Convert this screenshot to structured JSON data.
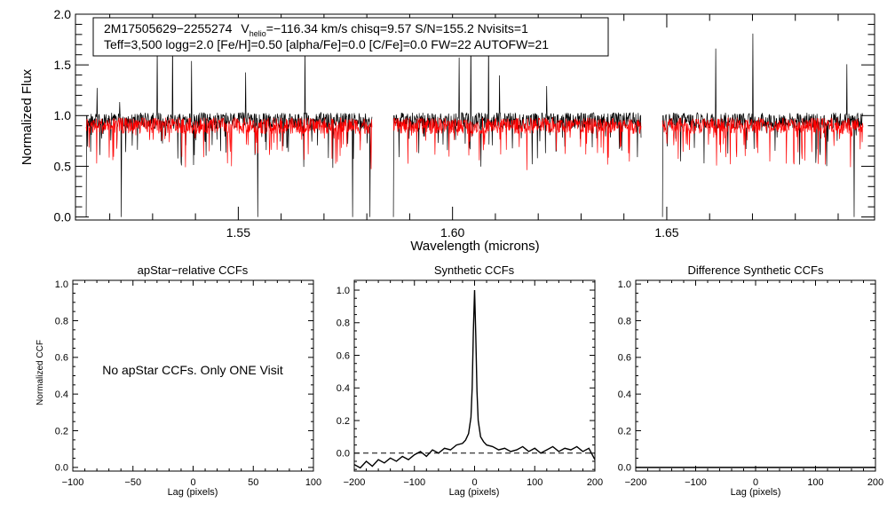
{
  "chart_data": [
    {
      "type": "line",
      "panel": "spectrum",
      "title": "",
      "xlabel": "Wavelength (microns)",
      "ylabel": "Normalized Flux",
      "xlim": [
        1.512,
        1.6985
      ],
      "ylim": [
        -0.03,
        2.0
      ],
      "xticks": [
        1.55,
        1.6,
        1.65
      ],
      "xtick_labels": [
        "1.55",
        "1.60",
        "1.65"
      ],
      "yticks": [
        0.0,
        0.5,
        1.0,
        1.5,
        2.0
      ],
      "ytick_labels": [
        "0.0",
        "0.5",
        "1.0",
        "1.5",
        "2.0"
      ],
      "detector_chips": [
        [
          1.5145,
          1.5812
        ],
        [
          1.5862,
          1.644
        ],
        [
          1.649,
          1.6958
        ]
      ],
      "series": [
        {
          "name": "observed",
          "color": "#000000",
          "base": 0.95
        },
        {
          "name": "model",
          "color": "#ff0000",
          "base": 0.9
        }
      ],
      "annotation": {
        "line1_star": "2M17505629−2255274",
        "line1_v": "V",
        "line1_sub": "helio",
        "line1_rest": "=−116.34 km/s  chisq=9.57  S/N=155.2  Nvisits=1",
        "line2": "Teff=3,500 logg=2.0 [Fe/H]=0.50 [alpha/Fe]=0.0 [C/Fe]=0.0 FW=22 AUTOFW=21"
      }
    },
    {
      "type": "line",
      "panel": "apstar",
      "title": "apStar−relative CCFs",
      "xlabel": "Lag (pixels)",
      "ylabel": "Normalized CCF",
      "xlim": [
        -100,
        100
      ],
      "ylim": [
        -0.02,
        1.02
      ],
      "xticks": [
        -100,
        -50,
        0,
        50,
        100
      ],
      "xtick_labels": [
        "−100",
        "−50",
        "0",
        "50",
        "100"
      ],
      "yticks": [
        0.0,
        0.2,
        0.4,
        0.6,
        0.8,
        1.0
      ],
      "ytick_labels": [
        "0.0",
        "0.2",
        "0.4",
        "0.6",
        "0.8",
        "1.0"
      ],
      "message": "No apStar CCFs.  Only ONE Visit",
      "series": []
    },
    {
      "type": "line",
      "panel": "synthetic",
      "title": "Synthetic CCFs",
      "xlabel": "Lag (pixels)",
      "ylabel": "",
      "xlim": [
        -200,
        200
      ],
      "ylim": [
        -0.11,
        1.06
      ],
      "xticks": [
        -200,
        -100,
        0,
        100,
        200
      ],
      "xtick_labels": [
        "−200",
        "−100",
        "0",
        "100",
        "200"
      ],
      "yticks": [
        0.0,
        0.2,
        0.4,
        0.6,
        0.8,
        1.0
      ],
      "ytick_labels": [
        "0.0",
        "0.2",
        "0.4",
        "0.6",
        "0.8",
        "1.0"
      ],
      "reference_line": {
        "y": 0.0,
        "style": "dashed"
      },
      "series": [
        {
          "name": "ccf",
          "color": "#000000",
          "x": [
            -200,
            -190,
            -180,
            -170,
            -160,
            -150,
            -140,
            -130,
            -120,
            -110,
            -100,
            -90,
            -80,
            -70,
            -60,
            -50,
            -40,
            -30,
            -20,
            -15,
            -10,
            -6,
            -4,
            -2,
            0,
            2,
            4,
            6,
            10,
            15,
            20,
            30,
            40,
            50,
            60,
            70,
            80,
            90,
            100,
            110,
            120,
            130,
            140,
            150,
            160,
            170,
            180,
            190,
            200
          ],
          "y": [
            -0.07,
            -0.09,
            -0.05,
            -0.08,
            -0.04,
            -0.06,
            -0.03,
            -0.05,
            -0.02,
            -0.04,
            -0.01,
            0.01,
            -0.02,
            0.02,
            0.0,
            0.03,
            0.02,
            0.05,
            0.06,
            0.08,
            0.12,
            0.22,
            0.4,
            0.75,
            1.0,
            0.72,
            0.38,
            0.2,
            0.1,
            0.07,
            0.05,
            0.04,
            0.02,
            0.03,
            0.01,
            0.02,
            0.04,
            0.01,
            0.03,
            0.0,
            0.02,
            0.04,
            0.01,
            0.03,
            0.02,
            0.04,
            0.01,
            0.03,
            -0.04
          ]
        }
      ]
    },
    {
      "type": "line",
      "panel": "difference",
      "title": "Difference Synthetic CCFs",
      "xlabel": "Lag (pixels)",
      "ylabel": "",
      "xlim": [
        -200,
        200
      ],
      "ylim": [
        -0.02,
        1.02
      ],
      "xticks": [
        -200,
        -100,
        0,
        100,
        200
      ],
      "xtick_labels": [
        "−200",
        "−100",
        "0",
        "100",
        "200"
      ],
      "yticks": [
        0.0,
        0.2,
        0.4,
        0.6,
        0.8,
        1.0
      ],
      "ytick_labels": [
        "0.0",
        "0.2",
        "0.4",
        "0.6",
        "0.8",
        "1.0"
      ],
      "series": [
        {
          "name": "difference",
          "color": "#000000",
          "x": [
            -200,
            200
          ],
          "y": [
            0.0,
            0.0
          ]
        }
      ]
    }
  ]
}
